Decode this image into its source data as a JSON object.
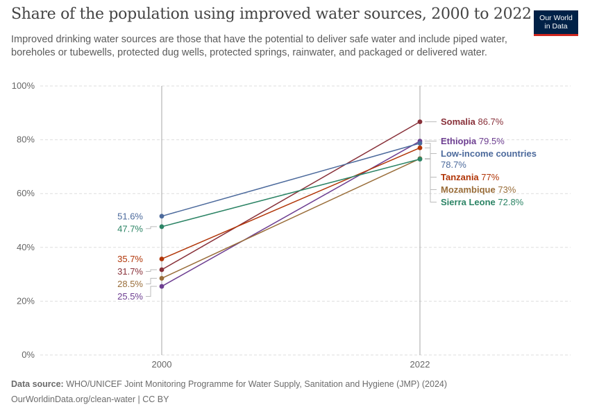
{
  "header": {
    "title": "Share of the population using improved water sources, 2000 to 2022",
    "subtitle": "Improved drinking water sources are those that have the potential to deliver safe water and include piped water, boreholes or tubewells, protected dug wells, protected springs, rainwater, and packaged or delivered water."
  },
  "logo": {
    "line1": "Our World",
    "line2": "in Data",
    "bg": "#002147",
    "accent": "#ce261e"
  },
  "footer": {
    "source_label": "Data source:",
    "source_text": "WHO/UNICEF Joint Monitoring Programme for Water Supply, Sanitation and Hygiene (JMP) (2024)",
    "url_text": "OurWorldinData.org/clean-water | CC BY"
  },
  "chart_data": {
    "type": "line",
    "x": [
      2000,
      2022
    ],
    "ylim": [
      0,
      100
    ],
    "yticks": [
      0,
      20,
      40,
      60,
      80,
      100
    ],
    "ytick_labels": [
      "0%",
      "20%",
      "40%",
      "60%",
      "80%",
      "100%"
    ],
    "xtick_labels": [
      "2000",
      "2022"
    ],
    "grid": true,
    "series": [
      {
        "name": "Somalia",
        "color": "#883039",
        "values": [
          31.7,
          86.7
        ],
        "labels": [
          "31.7%",
          "86.7%"
        ]
      },
      {
        "name": "Ethiopia",
        "color": "#6d3e91",
        "values": [
          25.5,
          79.5
        ],
        "labels": [
          "25.5%",
          "79.5%"
        ]
      },
      {
        "name": "Low-income countries",
        "color": "#4c6a9c",
        "values": [
          51.6,
          78.7
        ],
        "labels": [
          "51.6%",
          "78.7%"
        ]
      },
      {
        "name": "Tanzania",
        "color": "#b13507",
        "values": [
          35.7,
          77
        ],
        "labels": [
          "35.7%",
          "77%"
        ]
      },
      {
        "name": "Mozambique",
        "color": "#996d39",
        "values": [
          28.5,
          73
        ],
        "labels": [
          "28.5%",
          "73%"
        ]
      },
      {
        "name": "Sierra Leone",
        "color": "#2c8465",
        "values": [
          47.7,
          72.8
        ],
        "labels": [
          "47.7%",
          "72.8%"
        ]
      }
    ]
  }
}
